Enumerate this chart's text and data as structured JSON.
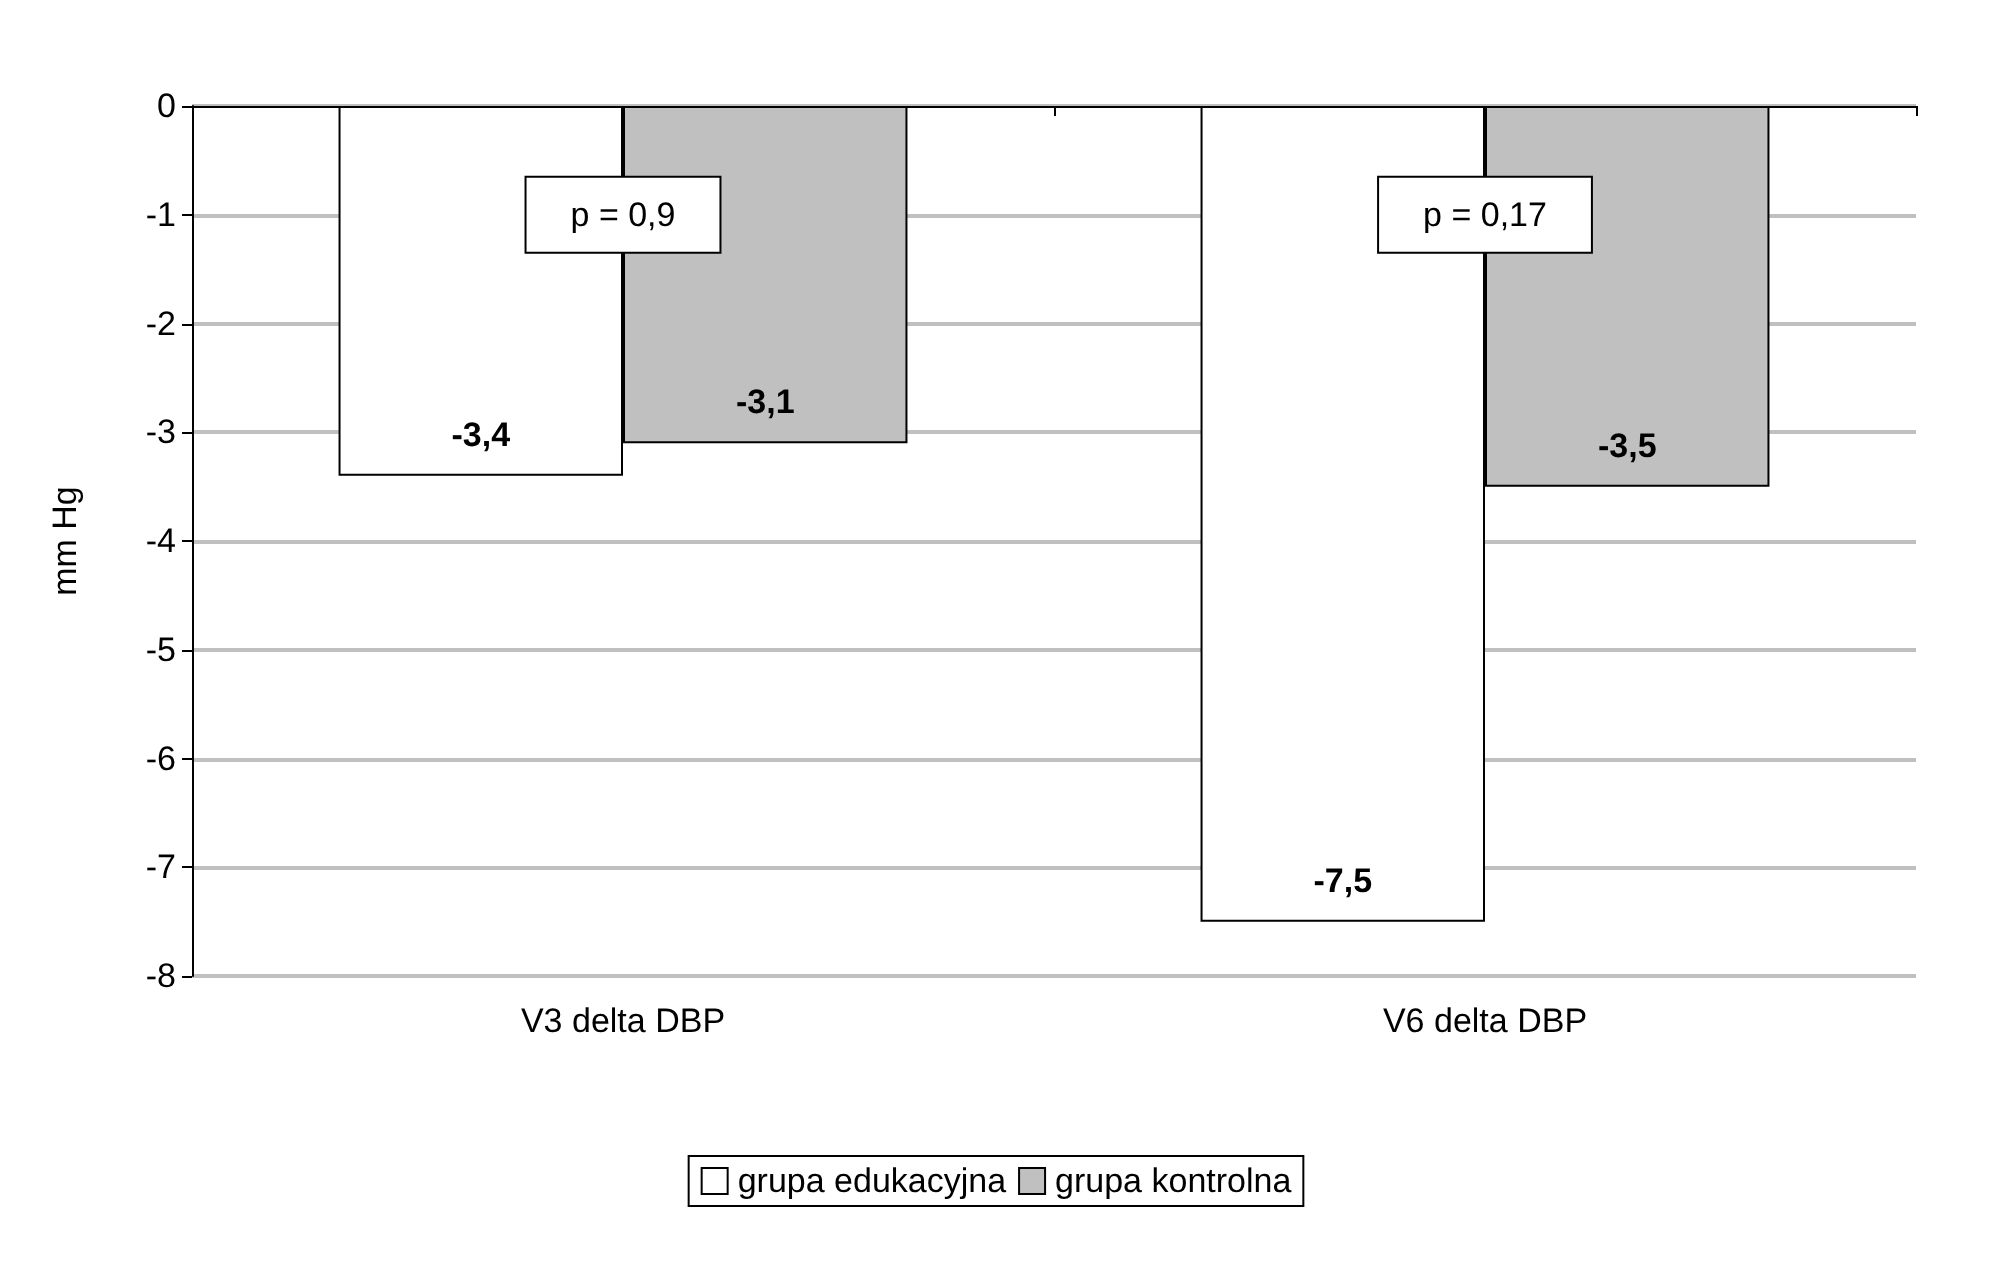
{
  "chart_data": {
    "type": "bar",
    "ylabel": "mm Hg",
    "categories": [
      "V3 delta DBP",
      "V6 delta DBP"
    ],
    "series": [
      {
        "name": "grupa edukacyjna",
        "color": "#ffffff",
        "values": [
          -3.4,
          -7.5
        ],
        "value_labels": [
          "-3,4",
          "-7,5"
        ]
      },
      {
        "name": "grupa kontrolna",
        "color": "#c0c0c0",
        "values": [
          -3.1,
          -3.5
        ],
        "value_labels": [
          "-3,1",
          "-3,5"
        ]
      }
    ],
    "ylim": [
      -8,
      0
    ],
    "yticks": [
      -8,
      -7,
      -6,
      -5,
      -4,
      -3,
      -2,
      -1,
      0
    ],
    "grid": "y",
    "legend": "bottom",
    "annotations": [
      {
        "text": "p = 0,9",
        "x": "V3 delta DBP",
        "y": -1
      },
      {
        "text": "p = 0,17",
        "x": "V6 delta DBP",
        "y": -1
      }
    ]
  }
}
